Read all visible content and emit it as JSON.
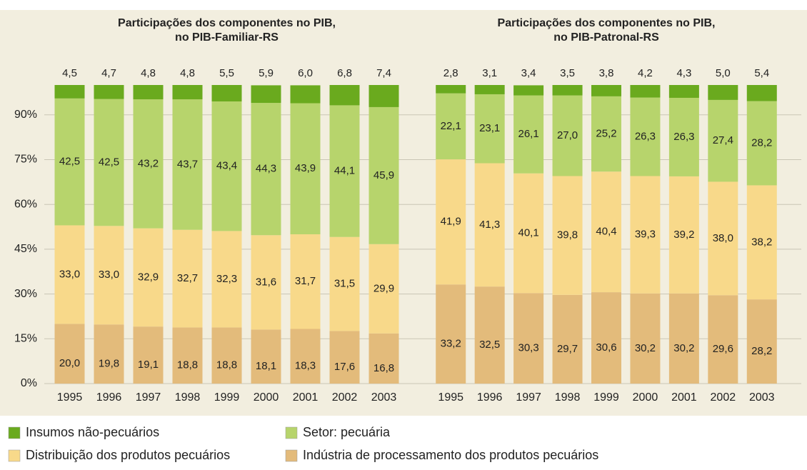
{
  "chart_data": {
    "type": "bar",
    "stacked": true,
    "ylim": [
      0,
      100
    ],
    "yticks": [
      {
        "value": 0,
        "label": "0%"
      },
      {
        "value": 15,
        "label": "15%"
      },
      {
        "value": 30,
        "label": "30%"
      },
      {
        "value": 45,
        "label": "45%"
      },
      {
        "value": 60,
        "label": "60%"
      },
      {
        "value": 75,
        "label": "75%"
      },
      {
        "value": 90,
        "label": "90%"
      }
    ],
    "grid": true,
    "series": [
      {
        "name": "Insumos não-pecuários",
        "color": "#6aaa1e"
      },
      {
        "name": "Setor: pecuária",
        "color": "#b7d46c"
      },
      {
        "name": "Distribuição dos produtos pecuários",
        "color": "#f8d98a"
      },
      {
        "name": "Indústria de processamento dos produtos pecuários",
        "color": "#e3bb7b"
      }
    ],
    "panels": [
      {
        "title": [
          "Participações dos componentes no PIB,",
          "no PIB-Familiar-RS"
        ],
        "categories": [
          "1995",
          "1996",
          "1997",
          "1998",
          "1999",
          "2000",
          "2001",
          "2002",
          "2003"
        ],
        "series": [
          {
            "values": [
              4.5,
              4.7,
              4.8,
              4.8,
              5.5,
              5.9,
              6.0,
              6.8,
              7.4
            ],
            "value_labels": [
              "4,5",
              "4,7",
              "4,8",
              "4,8",
              "5,5",
              "5,9",
              "6,0",
              "6,8",
              "7,4"
            ]
          },
          {
            "values": [
              42.5,
              42.5,
              43.2,
              43.7,
              43.4,
              44.3,
              43.9,
              44.1,
              45.9
            ],
            "value_labels": [
              "42,5",
              "42,5",
              "43,2",
              "43,7",
              "43,4",
              "44,3",
              "43,9",
              "44,1",
              "45,9"
            ]
          },
          {
            "values": [
              33.0,
              33.0,
              32.9,
              32.7,
              32.3,
              31.6,
              31.7,
              31.5,
              29.9
            ],
            "value_labels": [
              "33,0",
              "33,0",
              "32,9",
              "32,7",
              "32,3",
              "31,6",
              "31,7",
              "31,5",
              "29,9"
            ]
          },
          {
            "values": [
              20.0,
              19.8,
              19.1,
              18.8,
              18.8,
              18.1,
              18.3,
              17.6,
              16.8
            ],
            "value_labels": [
              "20,0",
              "19,8",
              "19,1",
              "18,8",
              "18,8",
              "18,1",
              "18,3",
              "17,6",
              "16,8"
            ]
          }
        ]
      },
      {
        "title": [
          "Participações dos componentes no PIB,",
          "no PIB-Patronal-RS"
        ],
        "categories": [
          "1995",
          "1996",
          "1997",
          "1998",
          "1999",
          "2000",
          "2001",
          "2002",
          "2003"
        ],
        "series": [
          {
            "values": [
              2.8,
              3.1,
              3.4,
              3.5,
              3.8,
              4.2,
              4.3,
              5.0,
              5.4
            ],
            "value_labels": [
              "2,8",
              "3,1",
              "3,4",
              "3,5",
              "3,8",
              "4,2",
              "4,3",
              "5,0",
              "5,4"
            ]
          },
          {
            "values": [
              22.1,
              23.1,
              26.1,
              27.0,
              25.2,
              26.3,
              26.3,
              27.4,
              28.2
            ],
            "value_labels": [
              "22,1",
              "23,1",
              "26,1",
              "27,0",
              "25,2",
              "26,3",
              "26,3",
              "27,4",
              "28,2"
            ]
          },
          {
            "values": [
              41.9,
              41.3,
              40.1,
              39.8,
              40.4,
              39.3,
              39.2,
              38.0,
              38.2
            ],
            "value_labels": [
              "41,9",
              "41,3",
              "40,1",
              "39,8",
              "40,4",
              "39,3",
              "39,2",
              "38,0",
              "38,2"
            ]
          },
          {
            "values": [
              33.2,
              32.5,
              30.3,
              29.7,
              30.6,
              30.2,
              30.2,
              29.6,
              28.2
            ],
            "value_labels": [
              "33,2",
              "32,5",
              "30,3",
              "29,7",
              "30,6",
              "30,2",
              "30,2",
              "29,6",
              "28,2"
            ]
          }
        ]
      }
    ]
  }
}
